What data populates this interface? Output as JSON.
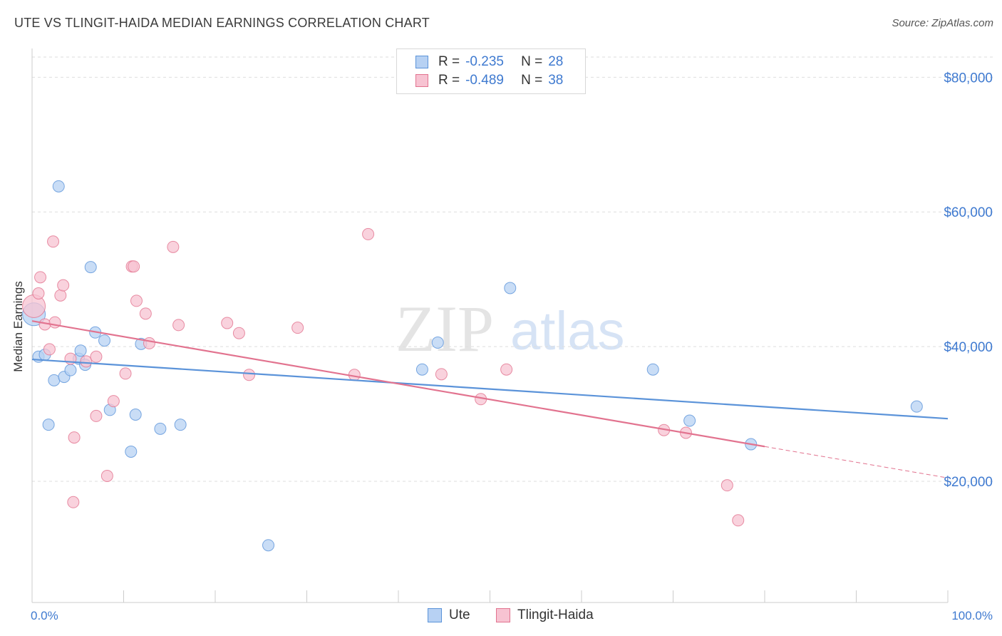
{
  "chart_data": {
    "type": "scatter",
    "title": "UTE VS TLINGIT-HAIDA MEDIAN EARNINGS CORRELATION CHART",
    "source": "Source: ZipAtlas.com",
    "xlabel": "",
    "ylabel": "Median Earnings",
    "xlim": [
      0,
      100
    ],
    "ylim": [
      2000,
      83000
    ],
    "x_tick_labels": [
      "0.0%",
      "100.0%"
    ],
    "y_ticks": [
      20000,
      40000,
      60000,
      80000
    ],
    "y_tick_labels": [
      "$20,000",
      "$40,000",
      "$60,000",
      "$80,000"
    ],
    "watermark": "ZIPatlas",
    "legend": [
      {
        "name": "Ute",
        "r_label": "R =",
        "r": "-0.235",
        "n_label": "N =",
        "n": "28",
        "color": "#5b93d9",
        "fill": "#b7d1f3"
      },
      {
        "name": "Tlingit-Haida",
        "r_label": "R =",
        "r": "-0.489",
        "n_label": "N =",
        "n": "38",
        "color": "#e2738f",
        "fill": "#f7c3d2"
      }
    ],
    "series": [
      {
        "name": "Ute",
        "color": "#5b93d9",
        "fill": "#b7d1f3",
        "trend": {
          "x0": 0,
          "y0": 38100,
          "x1": 100,
          "y1": 29300,
          "dash_from": null
        },
        "points": [
          {
            "x": 0.2,
            "y": 44800,
            "big": true
          },
          {
            "x": 0.7,
            "y": 38500
          },
          {
            "x": 1.4,
            "y": 38800
          },
          {
            "x": 1.8,
            "y": 28400
          },
          {
            "x": 2.4,
            "y": 35000
          },
          {
            "x": 2.9,
            "y": 63800
          },
          {
            "x": 3.5,
            "y": 35500
          },
          {
            "x": 4.2,
            "y": 36500
          },
          {
            "x": 5.1,
            "y": 38200
          },
          {
            "x": 5.3,
            "y": 39400
          },
          {
            "x": 5.8,
            "y": 37300
          },
          {
            "x": 6.4,
            "y": 51800
          },
          {
            "x": 6.9,
            "y": 42100
          },
          {
            "x": 7.9,
            "y": 40900
          },
          {
            "x": 8.5,
            "y": 30600
          },
          {
            "x": 10.8,
            "y": 24400
          },
          {
            "x": 11.3,
            "y": 29900
          },
          {
            "x": 11.9,
            "y": 40400
          },
          {
            "x": 14.0,
            "y": 27800
          },
          {
            "x": 16.2,
            "y": 28400
          },
          {
            "x": 25.8,
            "y": 10500
          },
          {
            "x": 42.6,
            "y": 36600
          },
          {
            "x": 44.3,
            "y": 40600
          },
          {
            "x": 52.2,
            "y": 48700
          },
          {
            "x": 67.8,
            "y": 36600
          },
          {
            "x": 71.8,
            "y": 29000
          },
          {
            "x": 78.5,
            "y": 25500
          },
          {
            "x": 96.6,
            "y": 31100
          }
        ]
      },
      {
        "name": "Tlingit-Haida",
        "color": "#e2738f",
        "fill": "#f7c3d2",
        "trend": {
          "x0": 0,
          "y0": 43800,
          "x1": 100,
          "y1": 20500,
          "dash_from": 80.0
        },
        "points": [
          {
            "x": 0.2,
            "y": 46000,
            "big": true
          },
          {
            "x": 0.7,
            "y": 47900
          },
          {
            "x": 0.9,
            "y": 50300
          },
          {
            "x": 1.4,
            "y": 43300
          },
          {
            "x": 1.9,
            "y": 39600
          },
          {
            "x": 2.3,
            "y": 55600
          },
          {
            "x": 2.5,
            "y": 43600
          },
          {
            "x": 3.1,
            "y": 47600
          },
          {
            "x": 3.4,
            "y": 49100
          },
          {
            "x": 4.2,
            "y": 38200
          },
          {
            "x": 4.6,
            "y": 26500
          },
          {
            "x": 4.5,
            "y": 16900
          },
          {
            "x": 5.9,
            "y": 37800
          },
          {
            "x": 7.0,
            "y": 29700
          },
          {
            "x": 7.0,
            "y": 38500
          },
          {
            "x": 8.2,
            "y": 20800
          },
          {
            "x": 8.9,
            "y": 31900
          },
          {
            "x": 10.2,
            "y": 36000
          },
          {
            "x": 10.9,
            "y": 51900
          },
          {
            "x": 11.1,
            "y": 51900
          },
          {
            "x": 11.4,
            "y": 46800
          },
          {
            "x": 12.4,
            "y": 44900
          },
          {
            "x": 12.8,
            "y": 40500
          },
          {
            "x": 15.4,
            "y": 54800
          },
          {
            "x": 16.0,
            "y": 43200
          },
          {
            "x": 21.3,
            "y": 43500
          },
          {
            "x": 22.6,
            "y": 42000
          },
          {
            "x": 23.7,
            "y": 35800
          },
          {
            "x": 29.0,
            "y": 42800
          },
          {
            "x": 35.2,
            "y": 35800
          },
          {
            "x": 36.7,
            "y": 56700
          },
          {
            "x": 44.7,
            "y": 35900
          },
          {
            "x": 49.0,
            "y": 32200
          },
          {
            "x": 51.8,
            "y": 36600
          },
          {
            "x": 69.0,
            "y": 27600
          },
          {
            "x": 71.4,
            "y": 27200
          },
          {
            "x": 75.9,
            "y": 19400
          },
          {
            "x": 77.1,
            "y": 14200
          }
        ]
      }
    ]
  }
}
